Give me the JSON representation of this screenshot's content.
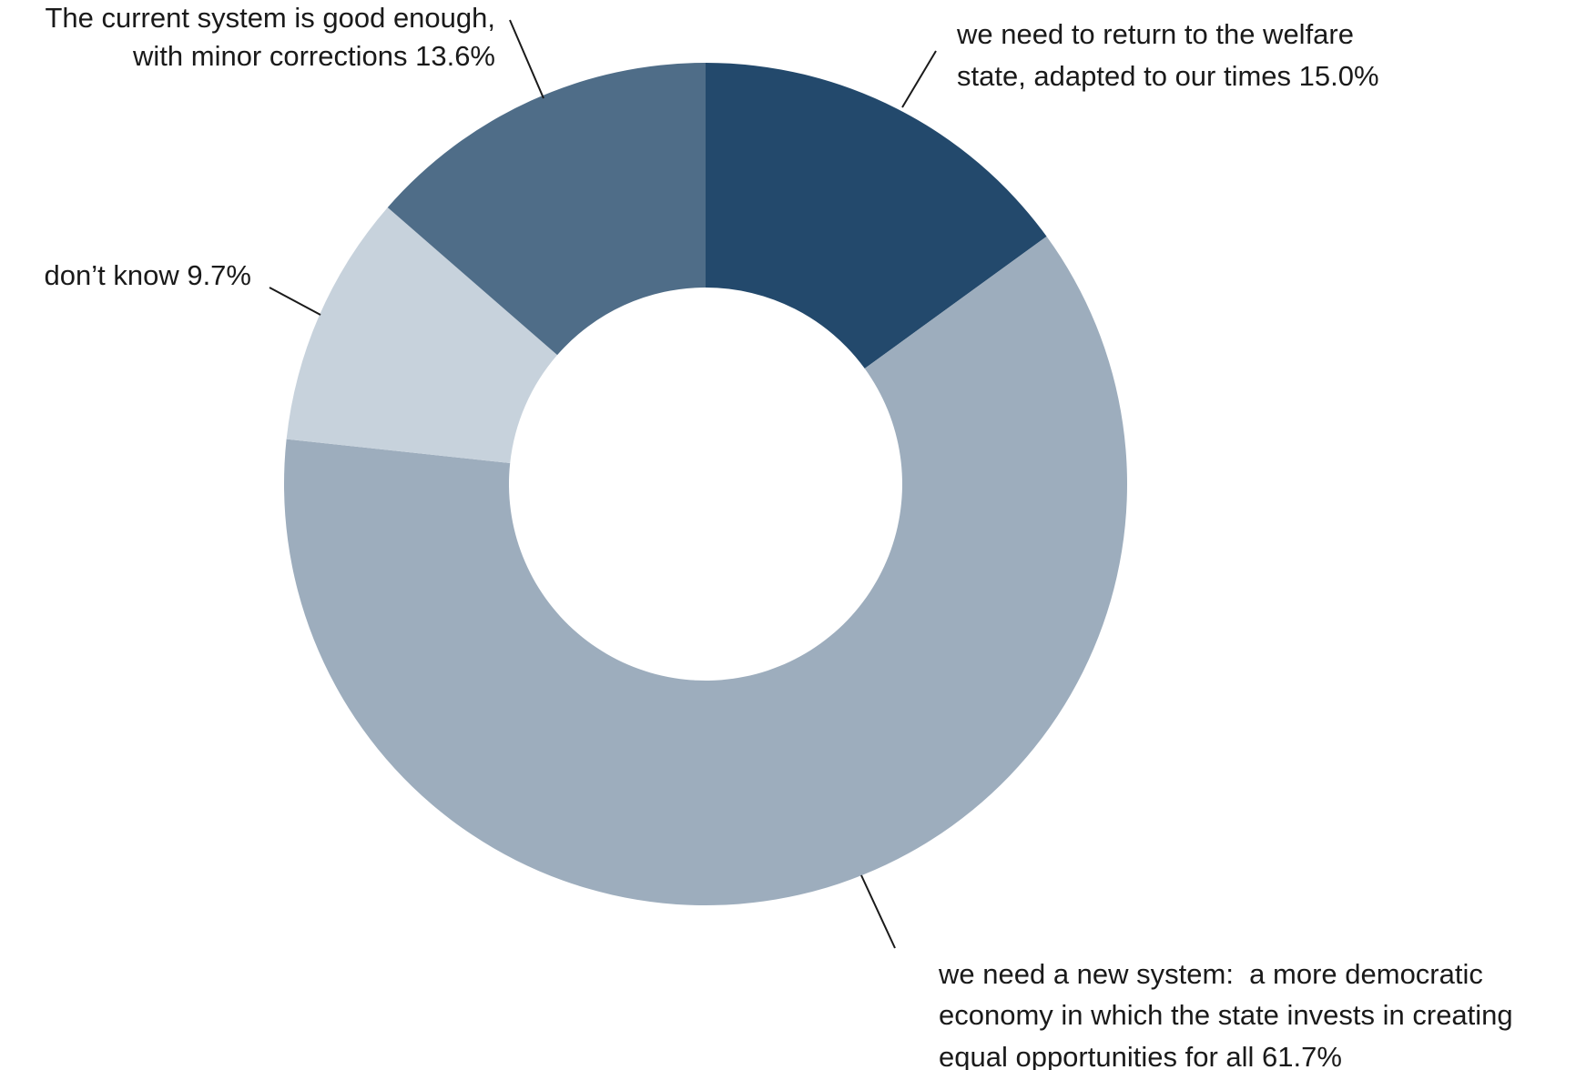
{
  "chart_data": {
    "type": "pie",
    "variant": "donut",
    "title": "",
    "slices": [
      {
        "label_lines": [
          "we need to return to the welfare",
          "state, adapted to our times"
        ],
        "value": 15.0,
        "value_label": "15.0%",
        "color": "#23496c"
      },
      {
        "label_lines": [
          "we need a new system:  a more democratic",
          "economy in which the state invests in creating",
          "equal opportunities for all"
        ],
        "value": 61.7,
        "value_label": "61.7%",
        "color": "#9dadbd"
      },
      {
        "label_lines": [
          "don’t know"
        ],
        "value": 9.7,
        "value_label": "9.7%",
        "color": "#c7d2dc"
      },
      {
        "label_lines": [
          "The current system is good enough,",
          "with minor corrections"
        ],
        "value": 13.6,
        "value_label": "13.6%",
        "color": "#4f6d88"
      }
    ],
    "start_angle_deg": 0,
    "direction": "clockwise",
    "legend": "none"
  }
}
